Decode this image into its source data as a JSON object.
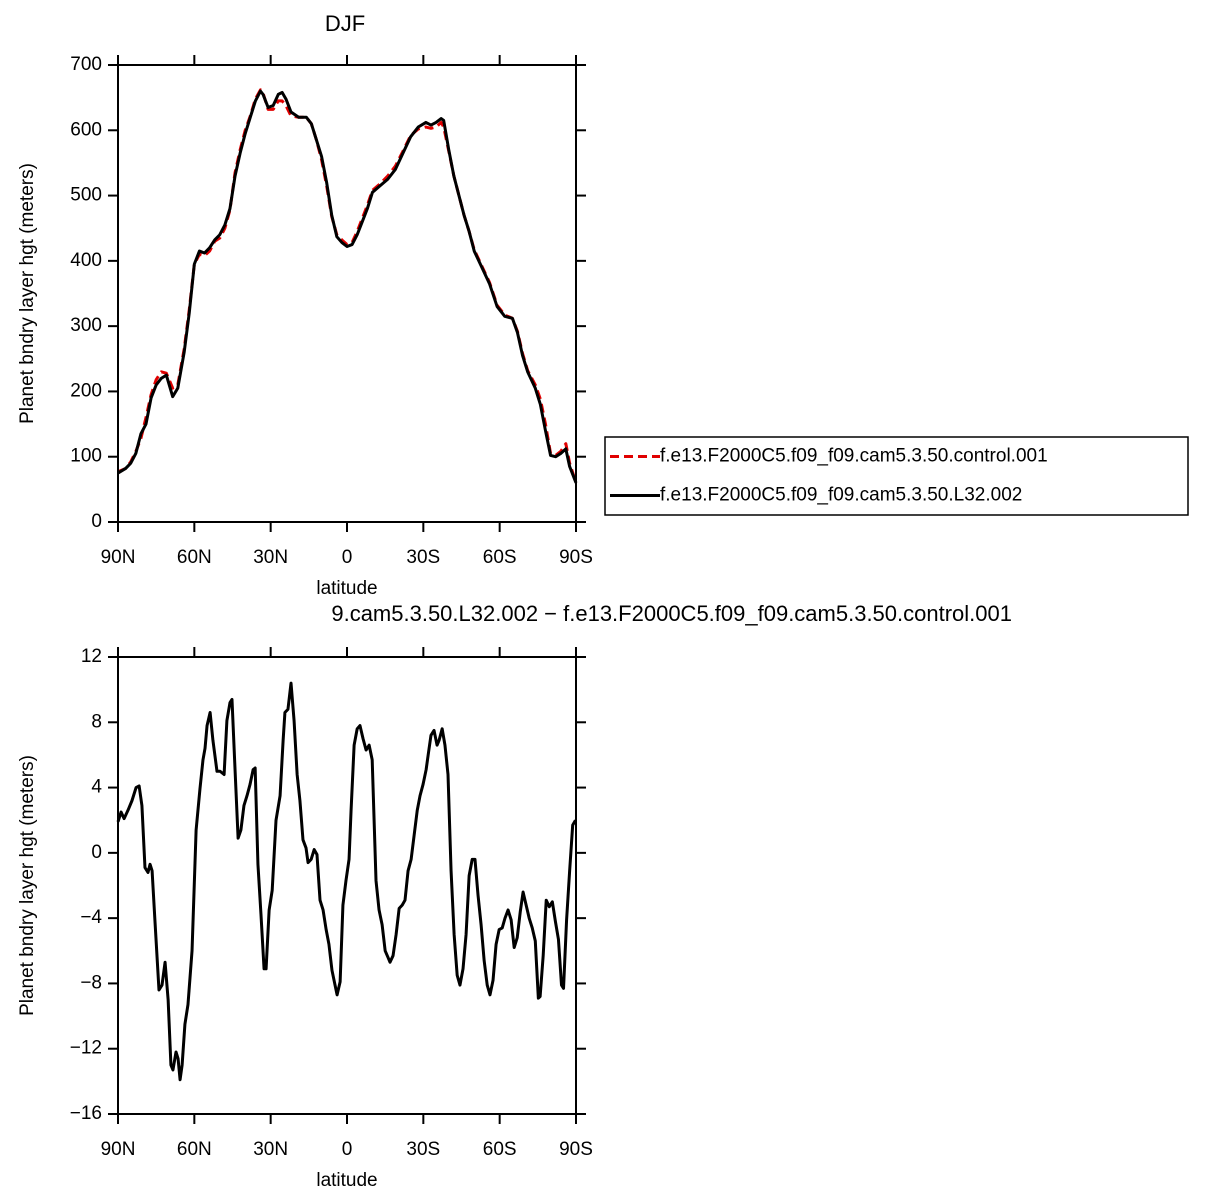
{
  "chart_data": [
    {
      "type": "line",
      "title": "DJF",
      "xlabel": "latitude",
      "ylabel": "Planet bndry layer hgt (meters)",
      "xlim": [
        90,
        -90
      ],
      "xticks": [
        {
          "value": 90,
          "label": "90N"
        },
        {
          "value": 60,
          "label": "60N"
        },
        {
          "value": 30,
          "label": "30N"
        },
        0,
        {
          "value": -30,
          "label": "30S"
        },
        {
          "value": -60,
          "label": "60S"
        },
        {
          "value": -90,
          "label": "90S"
        }
      ],
      "ylim": [
        0,
        700
      ],
      "yticks": [
        0,
        100,
        200,
        300,
        400,
        500,
        600,
        700
      ],
      "legend": "right",
      "x": [
        90,
        87,
        85,
        83,
        81,
        79,
        77,
        75,
        73,
        71,
        68.5,
        66.5,
        64,
        62,
        60,
        58,
        56,
        54,
        52,
        50,
        48,
        46,
        44,
        42,
        40,
        38,
        36,
        34,
        33,
        31,
        29,
        27,
        25.5,
        24,
        22,
        19,
        16,
        14,
        12,
        10,
        8,
        6,
        4,
        2,
        0,
        -2,
        -4,
        -6,
        -8,
        -10,
        -13,
        -16,
        -19,
        -22,
        -25,
        -28,
        -31,
        -33,
        -35,
        -37,
        -38,
        -40,
        -42,
        -44,
        -46,
        -48,
        -50,
        -53,
        -56,
        -59,
        -62,
        -65,
        -67,
        -69,
        -71,
        -74,
        -76,
        -78,
        -80,
        -82,
        -84,
        -86,
        -87.5,
        -90
      ],
      "series": [
        {
          "name": "f.e13.F2000C5.f09_f09.cam5.3.50.control.001",
          "color": "#e00000",
          "line_style": "dashed",
          "values": [
            77,
            82,
            92,
            108,
            128,
            160,
            195,
            218,
            230,
            228,
            205,
            210,
            265,
            325,
            395,
            410,
            408,
            415,
            430,
            435,
            450,
            478,
            535,
            570,
            600,
            622,
            648,
            662,
            657,
            632,
            632,
            645,
            645,
            638,
            622,
            620,
            620,
            610,
            585,
            555,
            515,
            468,
            440,
            432,
            425,
            428,
            445,
            465,
            485,
            508,
            518,
            530,
            545,
            568,
            592,
            602,
            605,
            603,
            605,
            612,
            605,
            568,
            530,
            500,
            470,
            445,
            417,
            392,
            367,
            332,
            317,
            312,
            292,
            258,
            232,
            210,
            188,
            150,
            105,
            102,
            108,
            120,
            90,
            60
          ]
        },
        {
          "name": "f.e13.F2000C5.f09_f09.cam5.3.50.L32.002",
          "color": "#000000",
          "line_style": "solid",
          "values": [
            75,
            82,
            90,
            105,
            135,
            150,
            190,
            210,
            220,
            225,
            192,
            205,
            260,
            320,
            395,
            415,
            412,
            420,
            432,
            440,
            455,
            480,
            530,
            565,
            595,
            620,
            645,
            660,
            655,
            635,
            638,
            655,
            658,
            648,
            628,
            620,
            620,
            610,
            585,
            560,
            520,
            470,
            437,
            428,
            422,
            425,
            440,
            460,
            480,
            505,
            515,
            525,
            540,
            565,
            590,
            605,
            612,
            608,
            612,
            618,
            615,
            570,
            530,
            500,
            470,
            445,
            415,
            390,
            365,
            330,
            315,
            312,
            290,
            255,
            230,
            205,
            180,
            140,
            102,
            100,
            105,
            112,
            85,
            60
          ]
        }
      ]
    },
    {
      "type": "line",
      "title": "9.cam5.3.50.L32.002 − f.e13.F2000C5.f09_f09.cam5.3.50.control.001",
      "xlabel": "latitude",
      "ylabel": "Planet bndry layer hgt (meters)",
      "xlim": [
        90,
        -90
      ],
      "xticks": [
        {
          "value": 90,
          "label": "90N"
        },
        {
          "value": 60,
          "label": "60N"
        },
        {
          "value": 30,
          "label": "30N"
        },
        0,
        {
          "value": -30,
          "label": "30S"
        },
        {
          "value": -60,
          "label": "60S"
        },
        {
          "value": -90,
          "label": "90S"
        }
      ],
      "ylim": [
        -16,
        12
      ],
      "yticks": [
        {
          "value": -16,
          "label": "−16"
        },
        {
          "value": -12,
          "label": "−12"
        },
        {
          "value": -8,
          "label": "−8"
        },
        {
          "value": -4,
          "label": "−4"
        },
        0,
        4,
        8,
        12
      ],
      "x": [
        90,
        88.8,
        87.6,
        86.1,
        84.5,
        82.9,
        81.7,
        80.6,
        79.4,
        78.2,
        77.4,
        76.6,
        75.5,
        73.9,
        72.7,
        71.5,
        70.3,
        69.2,
        68.4,
        67.2,
        66.4,
        65.6,
        64.8,
        63.7,
        62.5,
        60.9,
        59.3,
        57.8,
        56.6,
        55.8,
        55.0,
        53.8,
        52.7,
        51.1,
        49.9,
        48.3,
        47.2,
        46.0,
        45.2,
        44.0,
        42.8,
        41.7,
        40.5,
        39.3,
        38.1,
        36.9,
        36.1,
        35.0,
        33.8,
        32.6,
        31.8,
        30.6,
        29.4,
        27.9,
        26.3,
        25.1,
        24.4,
        23.2,
        22.0,
        20.8,
        19.6,
        18.5,
        17.3,
        16.1,
        15.3,
        14.1,
        12.9,
        11.8,
        10.6,
        9.4,
        8.2,
        7.1,
        5.9,
        4.7,
        3.9,
        2.7,
        1.6,
        0.4,
        -0.8,
        -1.6,
        -2.8,
        -4.0,
        -5.1,
        -6.3,
        -7.5,
        -8.7,
        -9.9,
        -11.4,
        -12.6,
        -13.8,
        -15.0,
        -16.1,
        -16.9,
        -18.1,
        -19.3,
        -20.5,
        -21.7,
        -22.8,
        -24.0,
        -25.2,
        -26.4,
        -27.6,
        -28.7,
        -29.9,
        -31.1,
        -31.9,
        -33.0,
        -34.2,
        -35.4,
        -36.2,
        -37.4,
        -38.5,
        -39.7,
        -40.9,
        -42.1,
        -43.3,
        -44.4,
        -45.6,
        -46.8,
        -48.0,
        -49.2,
        -50.3,
        -51.5,
        -52.7,
        -53.9,
        -55.1,
        -56.2,
        -57.4,
        -58.6,
        -59.8,
        -61.0,
        -62.1,
        -63.3,
        -64.5,
        -65.7,
        -66.9,
        -68.1,
        -69.2,
        -70.4,
        -71.6,
        -72.8,
        -74.0,
        -75.2,
        -75.9,
        -77.1,
        -78.3,
        -79.5,
        -80.7,
        -81.9,
        -83.1,
        -84.3,
        -85.1,
        -86.3,
        -87.5,
        -88.7,
        -89.8
      ],
      "color": "#000000",
      "values": [
        1.9,
        2.5,
        2.1,
        2.6,
        3.2,
        4.0,
        4.1,
        2.9,
        -0.9,
        -1.2,
        -0.7,
        -1.1,
        -4.1,
        -8.4,
        -8.1,
        -6.7,
        -9.0,
        -13.0,
        -13.3,
        -12.2,
        -12.6,
        -13.9,
        -13.0,
        -10.5,
        -9.3,
        -6.0,
        1.4,
        3.9,
        5.7,
        6.4,
        7.8,
        8.6,
        6.9,
        5.0,
        5.0,
        4.8,
        8.1,
        9.2,
        9.4,
        5.1,
        0.9,
        1.4,
        2.9,
        3.5,
        4.2,
        5.1,
        5.2,
        -0.7,
        -3.8,
        -7.1,
        -7.1,
        -3.5,
        -2.3,
        2.0,
        3.5,
        6.9,
        8.6,
        8.8,
        10.4,
        8.1,
        4.8,
        3.2,
        0.8,
        0.3,
        -0.6,
        -0.4,
        0.2,
        -0.1,
        -2.9,
        -3.5,
        -4.7,
        -5.6,
        -7.2,
        -8.1,
        -8.7,
        -7.9,
        -3.2,
        -1.7,
        -0.4,
        2.6,
        6.6,
        7.6,
        7.8,
        7.0,
        6.3,
        6.6,
        5.7,
        -1.7,
        -3.5,
        -4.4,
        -6.0,
        -6.4,
        -6.7,
        -6.3,
        -5.0,
        -3.4,
        -3.2,
        -2.9,
        -1.1,
        -0.4,
        1.1,
        2.6,
        3.5,
        4.2,
        5.1,
        6.0,
        7.2,
        7.5,
        6.6,
        6.9,
        7.6,
        6.6,
        4.8,
        -1.1,
        -5.0,
        -7.5,
        -8.1,
        -7.1,
        -5.0,
        -1.4,
        -0.4,
        -0.4,
        -2.6,
        -4.4,
        -6.6,
        -8.1,
        -8.7,
        -7.8,
        -5.6,
        -4.7,
        -4.6,
        -4.0,
        -3.5,
        -4.1,
        -5.8,
        -5.2,
        -3.6,
        -2.4,
        -3.2,
        -4.0,
        -4.6,
        -5.4,
        -8.9,
        -8.8,
        -6.3,
        -2.9,
        -3.3,
        -3.0,
        -4.2,
        -5.3,
        -8.1,
        -8.3,
        -4.1,
        -1.1,
        1.7,
        2.0
      ]
    }
  ]
}
